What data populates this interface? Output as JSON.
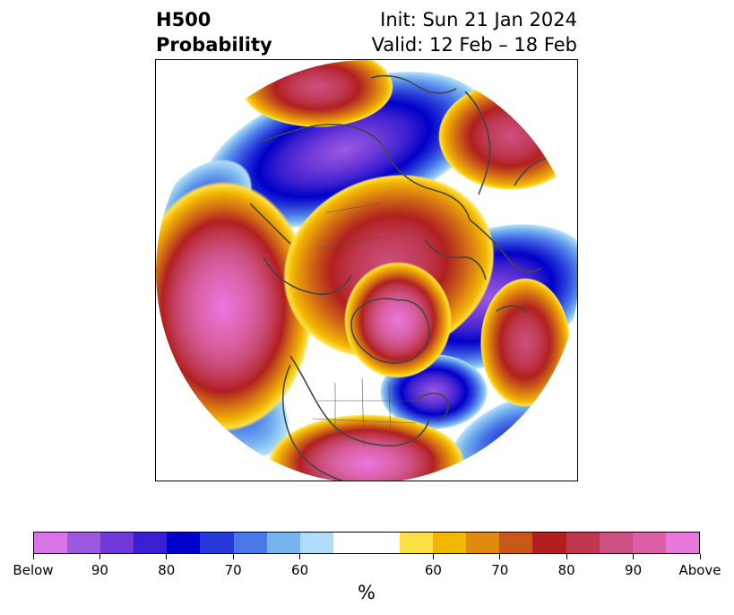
{
  "title": {
    "line1": "H500",
    "line2": "Probability",
    "init": "Init: Sun 21 Jan 2024",
    "valid": "Valid: 12 Feb – 18 Feb"
  },
  "colorbar": {
    "unit": "%",
    "colors": [
      "#d874e8",
      "#9b59e0",
      "#6f3ad8",
      "#3a1fd0",
      "#0000c8",
      "#2638d8",
      "#4a78e8",
      "#78b4f0",
      "#b0dcf8",
      "#ffffff",
      "#ffffff",
      "#ffe048",
      "#f2b800",
      "#e08a10",
      "#c85818",
      "#b02020",
      "#c03850",
      "#cc5080",
      "#dc60a8",
      "#e878dc"
    ],
    "tick_labels": [
      "Below",
      "90",
      "80",
      "70",
      "60",
      "60",
      "70",
      "80",
      "90",
      "Above"
    ]
  },
  "map": {
    "below_color": "#6f3ad8",
    "above_color": "#e070d0",
    "coastline_color": "#444444"
  }
}
